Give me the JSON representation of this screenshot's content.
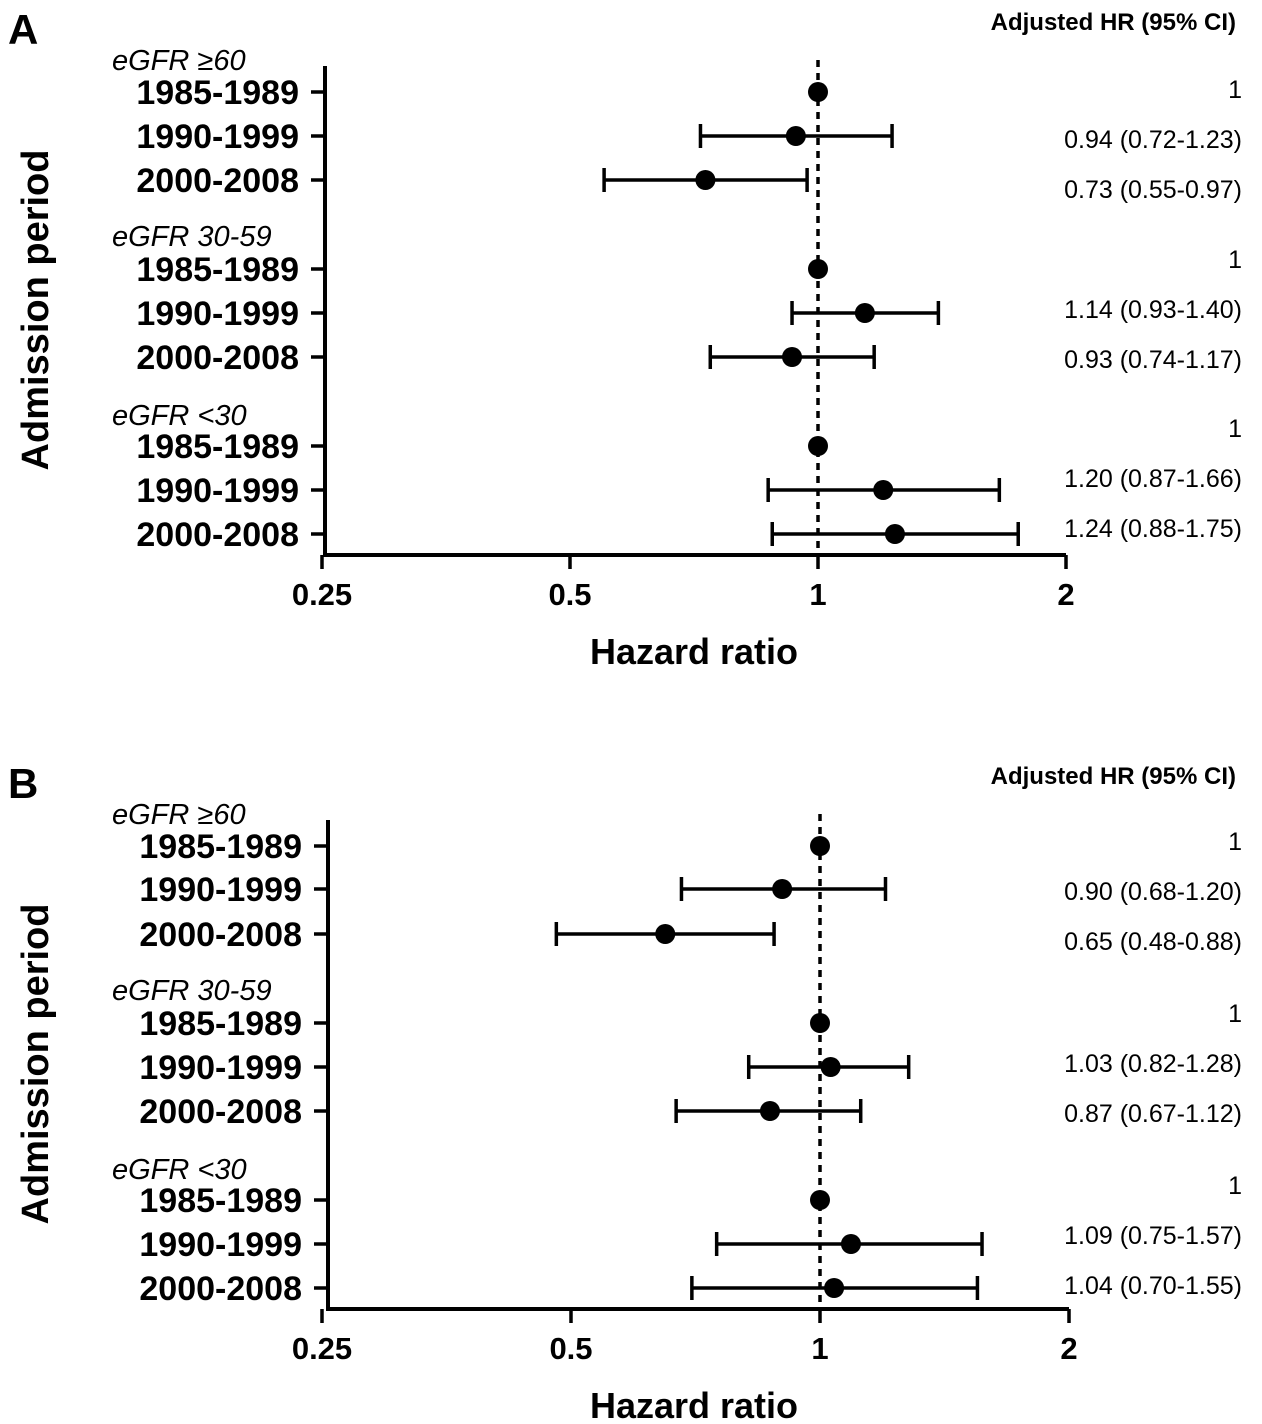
{
  "chart_data": [
    {
      "type": "forest",
      "panel": "A",
      "header": "Adjusted HR (95% CI)",
      "xlabel": "Hazard ratio",
      "ylabel": "Admission period",
      "xscale": "log2",
      "xlim": [
        0.25,
        2
      ],
      "xticks": [
        "0.25",
        "0.5",
        "1",
        "2"
      ],
      "reference_line": 1,
      "groups": [
        {
          "label": "eGFR ≥60",
          "rows": [
            {
              "period": "1985-1989",
              "hr": 1,
              "lo": null,
              "hi": null,
              "text": "1"
            },
            {
              "period": "1990-1999",
              "hr": 0.94,
              "lo": 0.72,
              "hi": 1.23,
              "text": "0.94 (0.72-1.23)"
            },
            {
              "period": "2000-2008",
              "hr": 0.73,
              "lo": 0.55,
              "hi": 0.97,
              "text": "0.73 (0.55-0.97)"
            }
          ]
        },
        {
          "label": "eGFR 30-59",
          "rows": [
            {
              "period": "1985-1989",
              "hr": 1,
              "lo": null,
              "hi": null,
              "text": "1"
            },
            {
              "period": "1990-1999",
              "hr": 1.14,
              "lo": 0.93,
              "hi": 1.4,
              "text": "1.14 (0.93-1.40)"
            },
            {
              "period": "2000-2008",
              "hr": 0.93,
              "lo": 0.74,
              "hi": 1.17,
              "text": "0.93 (0.74-1.17)"
            }
          ]
        },
        {
          "label": "eGFR <30",
          "rows": [
            {
              "period": "1985-1989",
              "hr": 1,
              "lo": null,
              "hi": null,
              "text": "1"
            },
            {
              "period": "1990-1999",
              "hr": 1.2,
              "lo": 0.87,
              "hi": 1.66,
              "text": "1.20 (0.87-1.66)"
            },
            {
              "period": "2000-2008",
              "hr": 1.24,
              "lo": 0.88,
              "hi": 1.75,
              "text": "1.24 (0.88-1.75)"
            }
          ]
        }
      ]
    },
    {
      "type": "forest",
      "panel": "B",
      "header": "Adjusted HR (95% CI)",
      "xlabel": "Hazard ratio",
      "ylabel": "Admission period",
      "xscale": "log2",
      "xlim": [
        0.25,
        2
      ],
      "xticks": [
        "0.25",
        "0.5",
        "1",
        "2"
      ],
      "reference_line": 1,
      "groups": [
        {
          "label": "eGFR ≥60",
          "rows": [
            {
              "period": "1985-1989",
              "hr": 1,
              "lo": null,
              "hi": null,
              "text": "1"
            },
            {
              "period": "1990-1999",
              "hr": 0.9,
              "lo": 0.68,
              "hi": 1.2,
              "text": "0.90 (0.68-1.20)"
            },
            {
              "period": "2000-2008",
              "hr": 0.65,
              "lo": 0.48,
              "hi": 0.88,
              "text": "0.65 (0.48-0.88)"
            }
          ]
        },
        {
          "label": "eGFR 30-59",
          "rows": [
            {
              "period": "1985-1989",
              "hr": 1,
              "lo": null,
              "hi": null,
              "text": "1"
            },
            {
              "period": "1990-1999",
              "hr": 1.03,
              "lo": 0.82,
              "hi": 1.28,
              "text": "1.03 (0.82-1.28)"
            },
            {
              "period": "2000-2008",
              "hr": 0.87,
              "lo": 0.67,
              "hi": 1.12,
              "text": "0.87 (0.67-1.12)"
            }
          ]
        },
        {
          "label": "eGFR <30",
          "rows": [
            {
              "period": "1985-1989",
              "hr": 1,
              "lo": null,
              "hi": null,
              "text": "1"
            },
            {
              "period": "1990-1999",
              "hr": 1.09,
              "lo": 0.75,
              "hi": 1.57,
              "text": "1.09 (0.75-1.57)"
            },
            {
              "period": "2000-2008",
              "hr": 1.04,
              "lo": 0.7,
              "hi": 1.55,
              "text": "1.04 (0.70-1.55)"
            }
          ]
        }
      ]
    }
  ]
}
